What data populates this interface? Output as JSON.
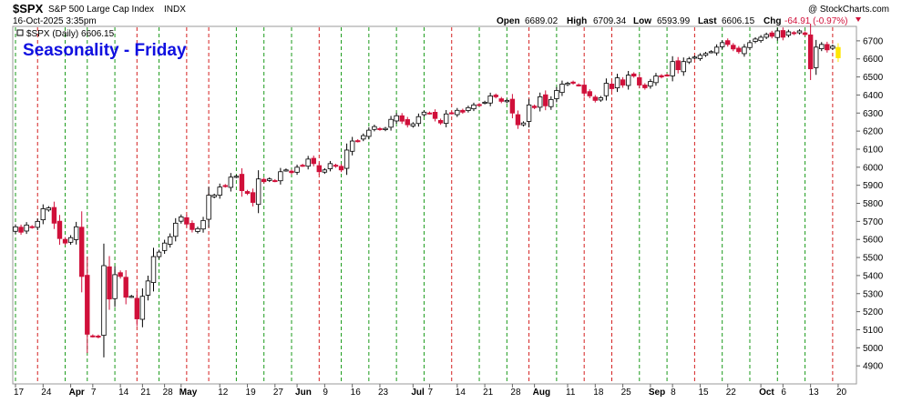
{
  "header": {
    "symbol": "$SPX",
    "name": "S&P 500 Large Cap Index",
    "exchange": "INDX",
    "datetime": "16-Oct-2025 3:35pm",
    "credit": "@ StockCharts.com",
    "open_label": "Open",
    "open_value": "6689.02",
    "high_label": "High",
    "high_value": "6709.34",
    "low_label": "Low",
    "low_value": "6593.99",
    "last_label": "Last",
    "last_value": "6606.15",
    "chg_label": "Chg",
    "chg_value": "-64.91 (-0.97%)"
  },
  "legend": {
    "text": "$SPX (Daily) 6606.15"
  },
  "annotation": {
    "text": "Seasonality - Friday"
  },
  "colors": {
    "up_candle_fill": "#ffffff",
    "down_candle_fill": "#d0103a",
    "black_candle_fill": "#000000",
    "last_candle_fill": "#ffe600",
    "green_line": "#1a9a1a",
    "red_line": "#d42020",
    "title_blue": "#1010e0",
    "chg_red": "#d0103a"
  },
  "chart_data": {
    "type": "candlestick",
    "title": "Seasonality - Friday",
    "xlabel": "",
    "ylabel": "",
    "ylim": [
      4800,
      6780
    ],
    "y_ticks": [
      4900,
      5000,
      5100,
      5200,
      5300,
      5400,
      5500,
      5600,
      5700,
      5800,
      5900,
      6000,
      6100,
      6200,
      6300,
      6400,
      6500,
      6600,
      6700
    ],
    "x_ticks": [
      {
        "label": "17",
        "i": 0,
        "bold": false
      },
      {
        "label": "24",
        "i": 5,
        "bold": false
      },
      {
        "label": "Apr",
        "i": 10,
        "bold": true
      },
      {
        "label": "7",
        "i": 14,
        "bold": false
      },
      {
        "label": "14",
        "i": 19,
        "bold": false
      },
      {
        "label": "21",
        "i": 23,
        "bold": false
      },
      {
        "label": "28",
        "i": 27,
        "bold": false
      },
      {
        "label": "May",
        "i": 30,
        "bold": true
      },
      {
        "label": "12",
        "i": 37,
        "bold": false
      },
      {
        "label": "19",
        "i": 42,
        "bold": false
      },
      {
        "label": "27",
        "i": 47,
        "bold": false
      },
      {
        "label": "Jun",
        "i": 51,
        "bold": true
      },
      {
        "label": "9",
        "i": 56,
        "bold": false
      },
      {
        "label": "16",
        "i": 61,
        "bold": false
      },
      {
        "label": "23",
        "i": 66,
        "bold": false
      },
      {
        "label": "Jul",
        "i": 72,
        "bold": true
      },
      {
        "label": "7",
        "i": 75,
        "bold": false
      },
      {
        "label": "14",
        "i": 80,
        "bold": false
      },
      {
        "label": "21",
        "i": 85,
        "bold": false
      },
      {
        "label": "28",
        "i": 90,
        "bold": false
      },
      {
        "label": "Aug",
        "i": 94,
        "bold": true
      },
      {
        "label": "11",
        "i": 100,
        "bold": false
      },
      {
        "label": "18",
        "i": 105,
        "bold": false
      },
      {
        "label": "25",
        "i": 110,
        "bold": false
      },
      {
        "label": "Sep",
        "i": 115,
        "bold": true
      },
      {
        "label": "8",
        "i": 119,
        "bold": false
      },
      {
        "label": "15",
        "i": 124,
        "bold": false
      },
      {
        "label": "22",
        "i": 129,
        "bold": false
      },
      {
        "label": "Oct",
        "i": 135,
        "bold": true
      },
      {
        "label": "6",
        "i": 139,
        "bold": false
      },
      {
        "label": "13",
        "i": 144,
        "bold": false
      },
      {
        "label": "20",
        "i": 149,
        "bold": false
      }
    ],
    "friday_green_lines": [
      0,
      9,
      13,
      18,
      26,
      40,
      45,
      50,
      59,
      64,
      69,
      74,
      84,
      89,
      98,
      113,
      118,
      128,
      133,
      138,
      143
    ],
    "friday_red_lines": [
      4,
      22,
      31,
      35,
      55,
      79,
      93,
      103,
      108,
      123,
      148
    ],
    "closes": [
      5670,
      5640,
      5680,
      5667,
      5700,
      5770,
      5775,
      5690,
      5605,
      5580,
      5610,
      5670,
      5395,
      5075,
      5065,
      5060,
      5455,
      5270,
      5405,
      5395,
      5280,
      5285,
      5160,
      5285,
      5370,
      5505,
      5530,
      5580,
      5615,
      5690,
      5725,
      5685,
      5655,
      5660,
      5705,
      5845,
      5845,
      5890,
      5895,
      5945,
      5950,
      5870,
      5855,
      5805,
      5935,
      5920,
      5935,
      5925,
      5975,
      5985,
      5970,
      6000,
      6010,
      6045,
      6020,
      5975,
      5985,
      6020,
      6005,
      5985,
      6095,
      6145,
      6145,
      6175,
      6205,
      6225,
      6210,
      6215,
      6265,
      6285,
      6255,
      6235,
      6240,
      6280,
      6305,
      6300,
      6270,
      6245,
      6295,
      6300,
      6315,
      6305,
      6330,
      6345,
      6345,
      6360,
      6395,
      6390,
      6365,
      6370,
      6300,
      6235,
      6245,
      6345,
      6330,
      6390,
      6340,
      6375,
      6425,
      6460,
      6465,
      6465,
      6455,
      6410,
      6395,
      6370,
      6385,
      6465,
      6435,
      6495,
      6455,
      6510,
      6505,
      6455,
      6440,
      6475,
      6505,
      6500,
      6510,
      6585,
      6540,
      6585,
      6600,
      6610,
      6620,
      6630,
      6640,
      6665,
      6690,
      6680,
      6655,
      6640,
      6665,
      6690,
      6710,
      6720,
      6735,
      6725,
      6755,
      6720,
      6750,
      6740,
      6755,
      6735,
      6545,
      6665,
      6680,
      6650,
      6670,
      6606
    ]
  }
}
